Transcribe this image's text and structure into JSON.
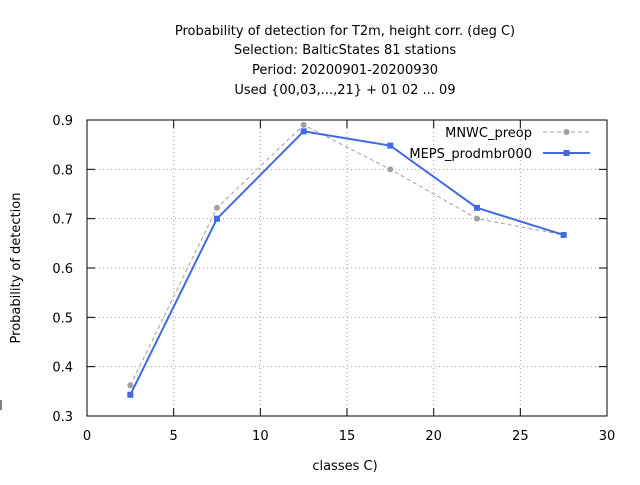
{
  "chart_data": {
    "type": "line",
    "title_lines": [
      "Probability of detection  for T2m, height corr. (deg C)",
      "Selection: BalticStates     81 stations",
      "Period: 20200901-20200930",
      "Used {00,03,...,21} + 01 02 ... 09"
    ],
    "xlabel": "classes C)",
    "ylabel": "Probability of detection",
    "xlim": [
      0,
      30
    ],
    "ylim": [
      0.3,
      0.9
    ],
    "xticks": [
      0,
      5,
      10,
      15,
      20,
      25,
      30
    ],
    "xtick_labels": [
      "0",
      "5",
      "10",
      "15",
      "20",
      "25",
      "30"
    ],
    "yticks": [
      0.3,
      0.4,
      0.5,
      0.6,
      0.7,
      0.8,
      0.9
    ],
    "ytick_labels": [
      "0.3",
      "0.4",
      "0.5",
      "0.6",
      "0.7",
      "0.8",
      "0.9"
    ],
    "grid": true,
    "legend_position": "top-right",
    "x": [
      2.5,
      7.5,
      12.5,
      17.5,
      22.5,
      27.5
    ],
    "series": [
      {
        "name": "MNWC_preop",
        "values": [
          0.362,
          0.722,
          0.89,
          0.8,
          0.7,
          0.667
        ],
        "color": "#a0a0a0",
        "style": "dashed"
      },
      {
        "name": "MEPS_prodmbr000",
        "values": [
          0.343,
          0.7,
          0.877,
          0.848,
          0.722,
          0.667
        ],
        "color": "#4169e1",
        "style": "solid"
      }
    ]
  }
}
